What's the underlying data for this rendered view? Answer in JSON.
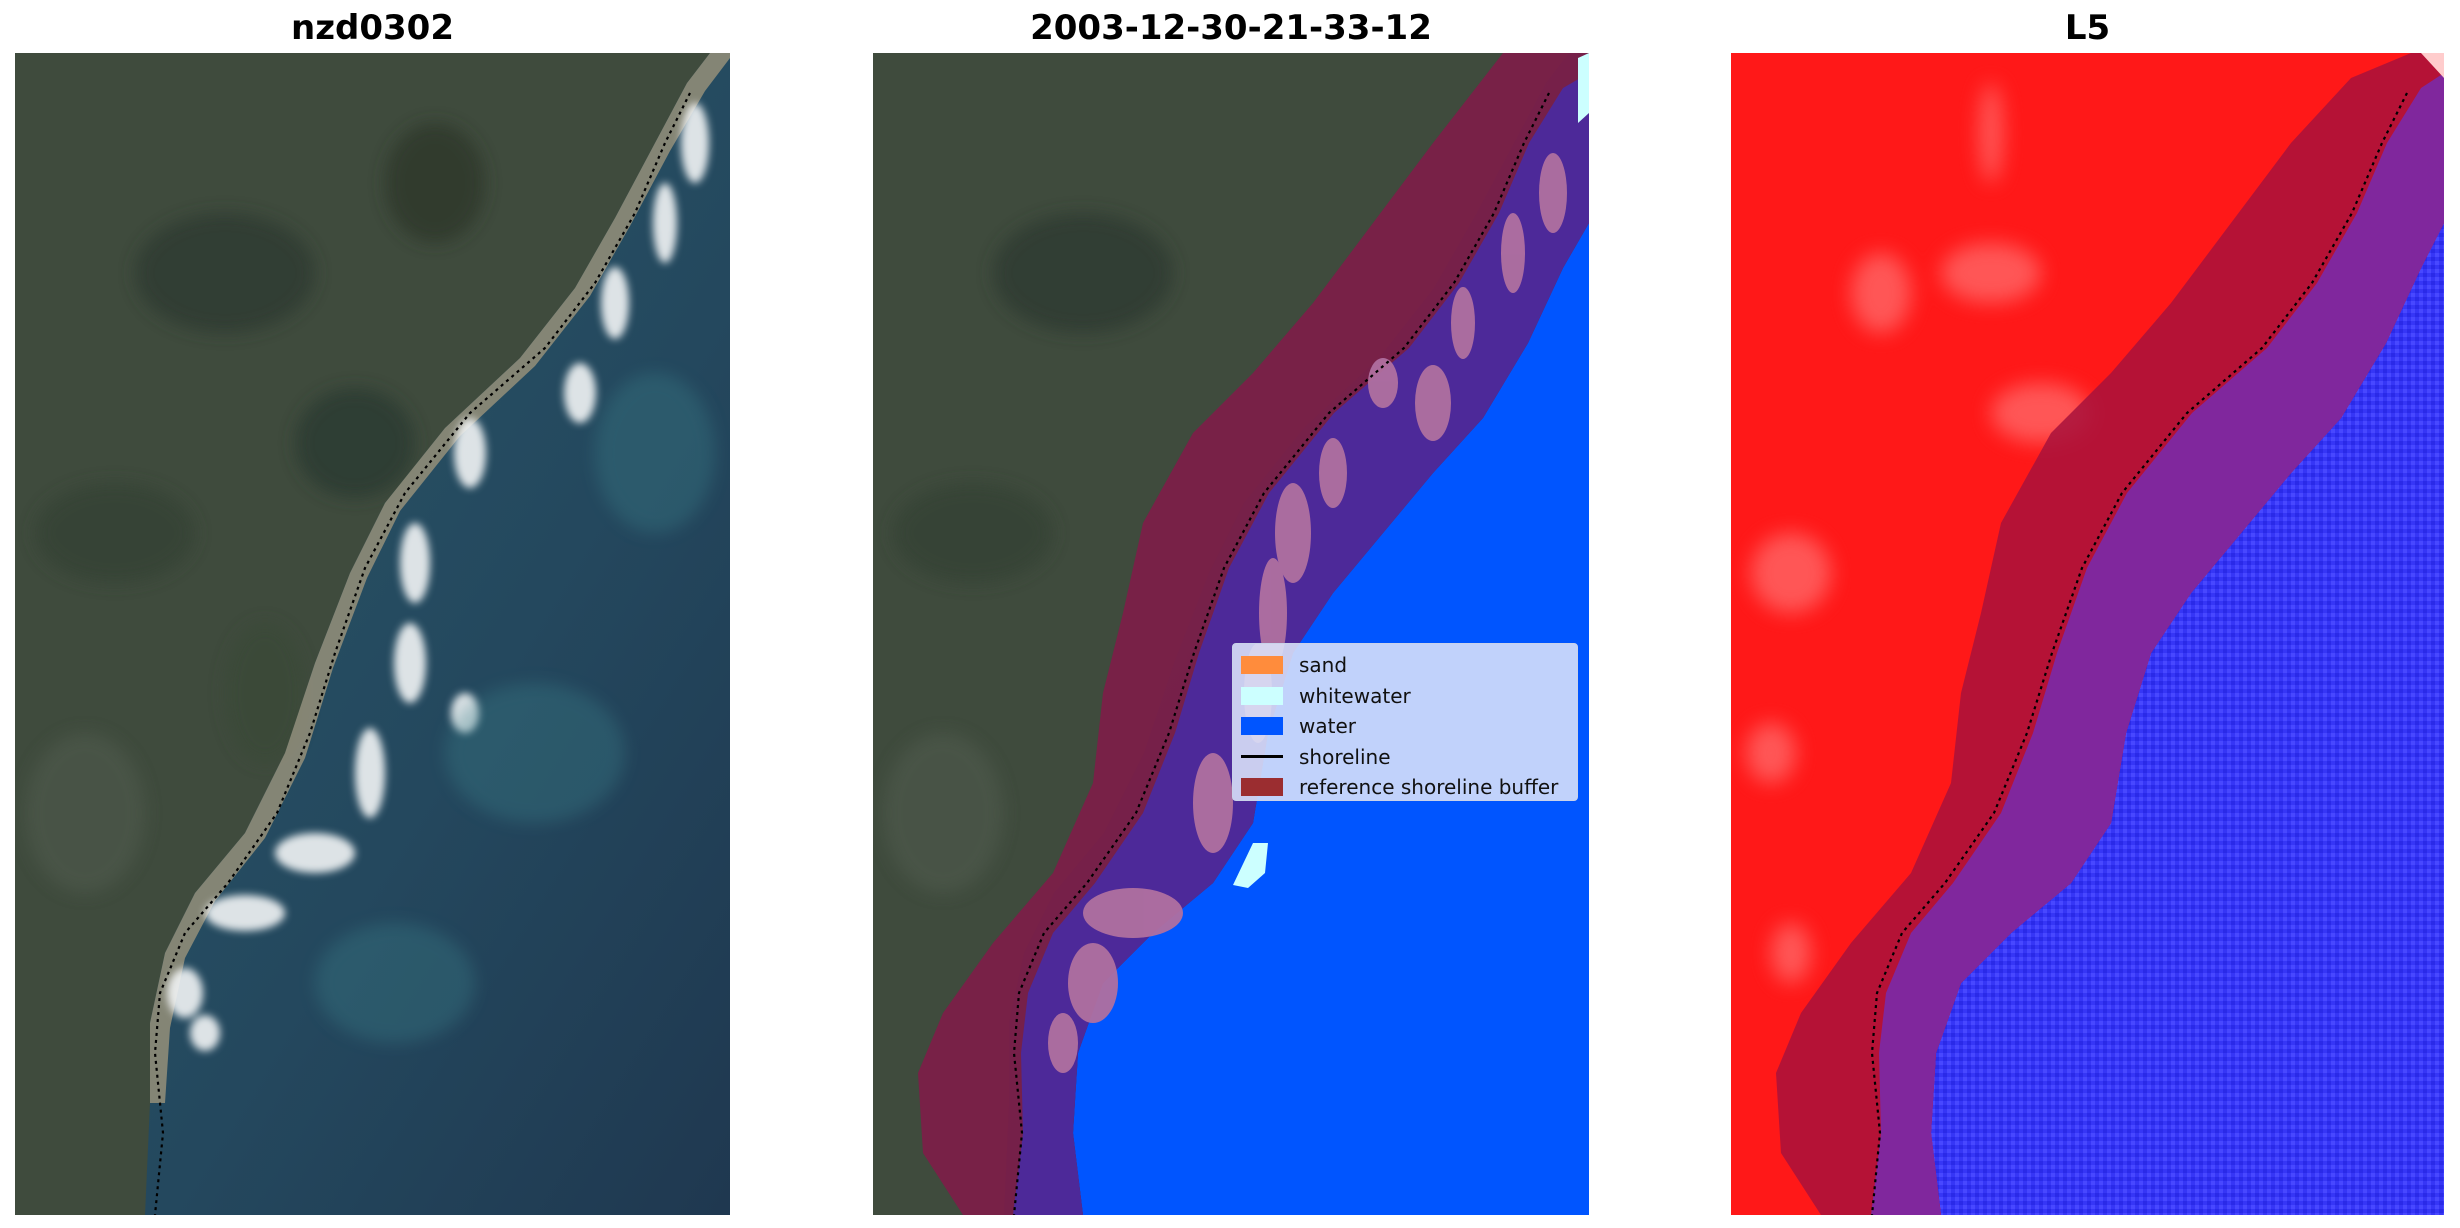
{
  "panels": [
    {
      "title": "nzd0302"
    },
    {
      "title": "2003-12-30-21-33-12"
    },
    {
      "title": "L5"
    }
  ],
  "legend": {
    "items": [
      {
        "label": "sand",
        "color": "#ff8c3c"
      },
      {
        "label": "whitewater",
        "color": "#ccffff"
      },
      {
        "label": "water",
        "color": "#0055ff"
      },
      {
        "label": "shoreline",
        "color": "#000000"
      },
      {
        "label": "reference shoreline buffer",
        "color": "#9b2d30"
      }
    ]
  },
  "colors": {
    "land": "#3e4b3c",
    "sea": "#23465e",
    "beach": "#8a8a78",
    "water_class": "#0055ff",
    "whitewater_class": "#ccffff",
    "buffer": "#7e1f45",
    "l5_land": "#ff1a1a",
    "l5_water": "#3a3aff"
  }
}
